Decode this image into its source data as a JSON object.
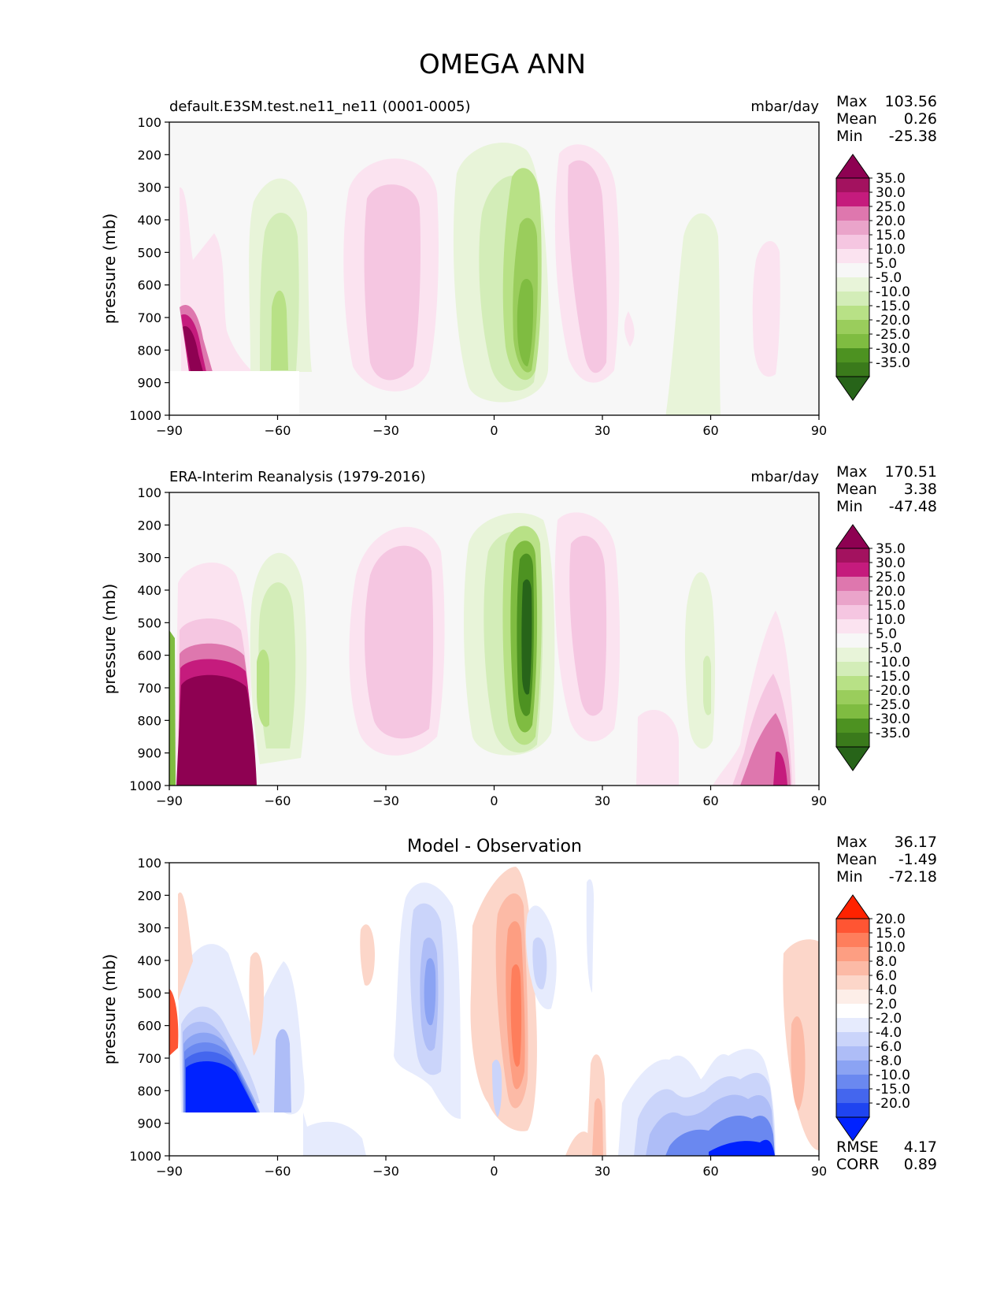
{
  "figure_title": "OMEGA ANN",
  "chart_data": [
    {
      "type": "contour",
      "panel": "model",
      "title_left": "default.E3SM.test.ne11_ne11 (0001-0005)",
      "title_center": "",
      "units": "mbar/day",
      "ylabel": "pressure (mb)",
      "xlabel": "",
      "xlim": [
        -90,
        90
      ],
      "ylim": [
        1000,
        100
      ],
      "xticks": [
        -90,
        -60,
        -30,
        0,
        30,
        60,
        90
      ],
      "xtick_labels": [
        "−90",
        "−60",
        "−30",
        "0",
        "30",
        "60",
        "90"
      ],
      "yticks": [
        100,
        200,
        300,
        400,
        500,
        600,
        700,
        800,
        900,
        1000
      ],
      "ytick_labels": [
        "100",
        "200",
        "300",
        "400",
        "500",
        "600",
        "700",
        "800",
        "900",
        "1000"
      ],
      "stats": [
        {
          "label": "Max",
          "value": "103.56"
        },
        {
          "label": "Mean",
          "value": "0.26"
        },
        {
          "label": "Min",
          "value": "-25.38"
        }
      ],
      "colorbar": {
        "labels": [
          "35.0",
          "30.0",
          "25.0",
          "20.0",
          "15.0",
          "10.0",
          "5.0",
          "-5.0",
          "-10.0",
          "-15.0",
          "-20.0",
          "-25.0",
          "-30.0",
          "-35.0"
        ],
        "colors": [
          "#8e0152",
          "#a3125f",
          "#c51b7d",
          "#de77ae",
          "#eaa4ca",
          "#f5c6e1",
          "#fbe3f0",
          "#f7f7f7",
          "#e8f4d9",
          "#d3edb8",
          "#b8e186",
          "#9acd5c",
          "#7fbc41",
          "#4d9221",
          "#3a7a1b",
          "#276419"
        ]
      },
      "features": [
        {
          "lat": -86,
          "p": 800,
          "value": 100
        },
        {
          "lat": -60,
          "p": 700,
          "value": -18
        },
        {
          "lat": -30,
          "p": 560,
          "value": 14
        },
        {
          "lat": 7,
          "p": 650,
          "value": -24
        },
        {
          "lat": 23,
          "p": 500,
          "value": 14
        },
        {
          "lat": 55,
          "p": 600,
          "value": -7
        },
        {
          "lat": 80,
          "p": 700,
          "value": 6
        }
      ]
    },
    {
      "type": "contour",
      "panel": "observation",
      "title_left": "ERA-Interim Reanalysis (1979-2016)",
      "title_center": "",
      "units": "mbar/day",
      "ylabel": "pressure (mb)",
      "xlabel": "",
      "xlim": [
        -90,
        90
      ],
      "ylim": [
        1000,
        100
      ],
      "xticks": [
        -90,
        -60,
        -30,
        0,
        30,
        60,
        90
      ],
      "xtick_labels": [
        "−90",
        "−60",
        "−30",
        "0",
        "30",
        "60",
        "90"
      ],
      "yticks": [
        100,
        200,
        300,
        400,
        500,
        600,
        700,
        800,
        900,
        1000
      ],
      "ytick_labels": [
        "100",
        "200",
        "300",
        "400",
        "500",
        "600",
        "700",
        "800",
        "900",
        "1000"
      ],
      "stats": [
        {
          "label": "Max",
          "value": "170.51"
        },
        {
          "label": "Mean",
          "value": "3.38"
        },
        {
          "label": "Min",
          "value": "-47.48"
        }
      ],
      "colorbar": {
        "labels": [
          "35.0",
          "30.0",
          "25.0",
          "20.0",
          "15.0",
          "10.0",
          "5.0",
          "-5.0",
          "-10.0",
          "-15.0",
          "-20.0",
          "-25.0",
          "-30.0",
          "-35.0"
        ],
        "colors": [
          "#8e0152",
          "#a3125f",
          "#c51b7d",
          "#de77ae",
          "#eaa4ca",
          "#f5c6e1",
          "#fbe3f0",
          "#f7f7f7",
          "#e8f4d9",
          "#d3edb8",
          "#b8e186",
          "#9acd5c",
          "#7fbc41",
          "#4d9221",
          "#3a7a1b",
          "#276419"
        ]
      },
      "features": [
        {
          "lat": -78,
          "p": 850,
          "value": 150
        },
        {
          "lat": -62,
          "p": 700,
          "value": -20
        },
        {
          "lat": -28,
          "p": 550,
          "value": 14
        },
        {
          "lat": 7,
          "p": 650,
          "value": -45
        },
        {
          "lat": 23,
          "p": 500,
          "value": 14
        },
        {
          "lat": 58,
          "p": 700,
          "value": -10
        },
        {
          "lat": 78,
          "p": 900,
          "value": 25
        }
      ]
    },
    {
      "type": "contour",
      "panel": "difference",
      "title_left": "",
      "title_center": "Model - Observation",
      "units": "",
      "ylabel": "pressure (mb)",
      "xlabel": "",
      "xlim": [
        -90,
        90
      ],
      "ylim": [
        1000,
        100
      ],
      "xticks": [
        -90,
        -60,
        -30,
        0,
        30,
        60,
        90
      ],
      "xtick_labels": [
        "−90",
        "−60",
        "−30",
        "0",
        "30",
        "60",
        "90"
      ],
      "yticks": [
        100,
        200,
        300,
        400,
        500,
        600,
        700,
        800,
        900,
        1000
      ],
      "ytick_labels": [
        "100",
        "200",
        "300",
        "400",
        "500",
        "600",
        "700",
        "800",
        "900",
        "1000"
      ],
      "stats": [
        {
          "label": "Max",
          "value": "36.17"
        },
        {
          "label": "Mean",
          "value": "-1.49"
        },
        {
          "label": "Min",
          "value": "-72.18"
        }
      ],
      "extra_stats": [
        {
          "label": "RMSE",
          "value": "4.17"
        },
        {
          "label": "CORR",
          "value": "0.89"
        }
      ],
      "colorbar": {
        "labels": [
          "20.0",
          "15.0",
          "10.0",
          "8.0",
          "6.0",
          "4.0",
          "2.0",
          "-2.0",
          "-4.0",
          "-6.0",
          "-8.0",
          "-10.0",
          "-15.0",
          "-20.0"
        ],
        "colors": [
          "#ff2200",
          "#ff5533",
          "#fe7e5c",
          "#fd9e82",
          "#fcbaa6",
          "#fcd6c9",
          "#fdeee8",
          "#ffffff",
          "#e6ebfd",
          "#cad4fa",
          "#aebdf7",
          "#8ba3f3",
          "#6a88f0",
          "#4466ee",
          "#1f44f0",
          "#0022ff"
        ]
      },
      "features": [
        {
          "lat": -78,
          "p": 780,
          "value": -25
        },
        {
          "lat": -88,
          "p": 620,
          "value": 15
        },
        {
          "lat": -20,
          "p": 520,
          "value": -6
        },
        {
          "lat": 6,
          "p": 620,
          "value": 10
        },
        {
          "lat": 12,
          "p": 440,
          "value": -5
        },
        {
          "lat": 28,
          "p": 930,
          "value": 6
        },
        {
          "lat": 45,
          "p": 930,
          "value": -8
        },
        {
          "lat": 76,
          "p": 930,
          "value": -20
        },
        {
          "lat": 83,
          "p": 700,
          "value": 6
        }
      ]
    }
  ]
}
